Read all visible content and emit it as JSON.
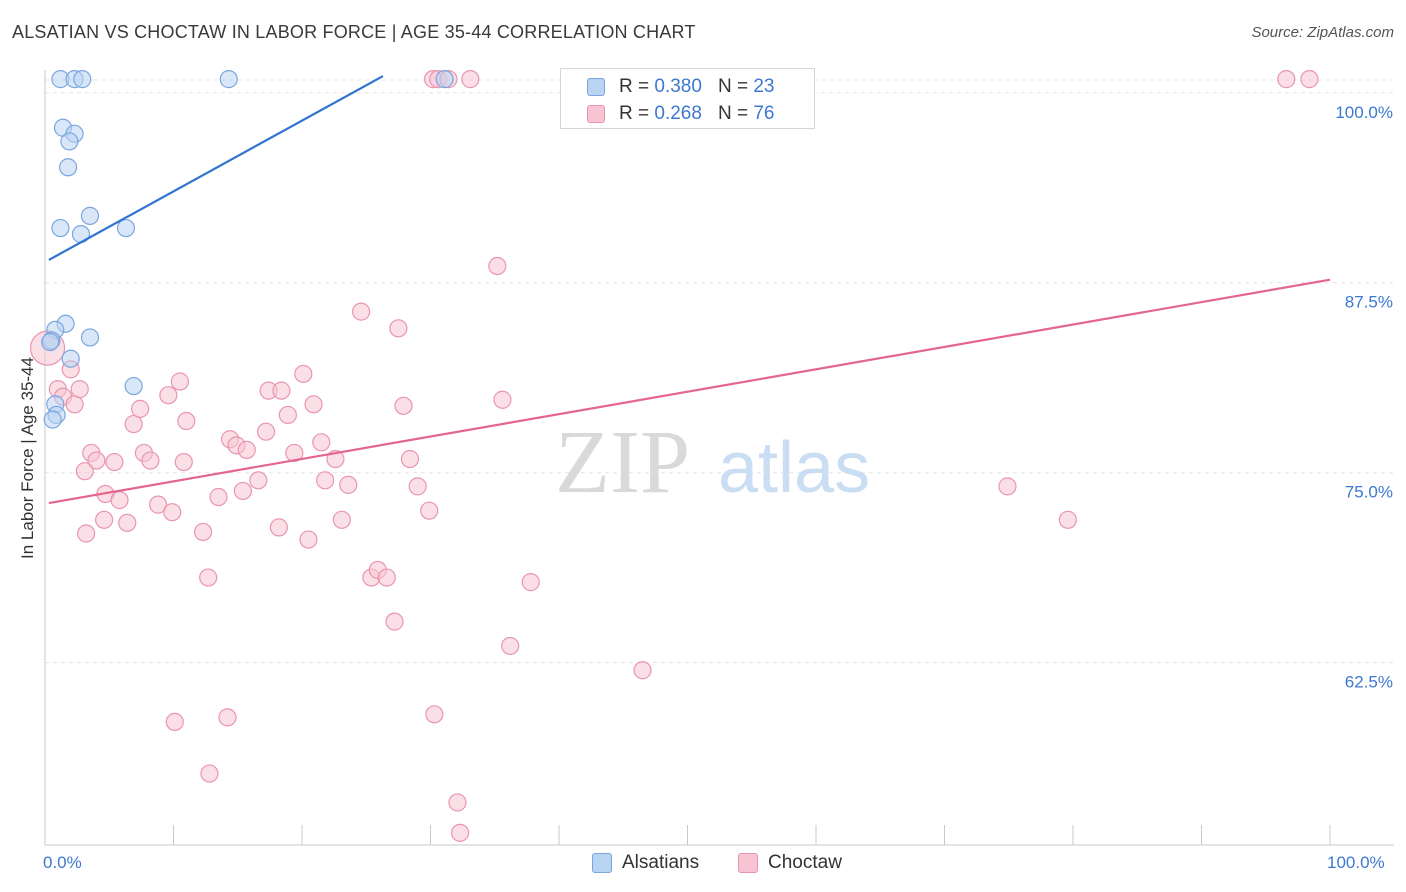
{
  "header": {
    "title": "ALSATIAN VS CHOCTAW IN LABOR FORCE | AGE 35-44 CORRELATION CHART",
    "source": "Source: ZipAtlas.com"
  },
  "watermark": {
    "zip": "ZIP",
    "atlas": "atlas"
  },
  "legend": {
    "rows": [
      {
        "r_label": "R =",
        "r_value": "0.380",
        "n_label": "N =",
        "n_value": "23"
      },
      {
        "r_label": "R =",
        "r_value": "0.268",
        "n_label": "N =",
        "n_value": "76"
      }
    ]
  },
  "bottom_legend": {
    "series1": "Alsatians",
    "series2": "Choctaw"
  },
  "chart_data": {
    "type": "scatter",
    "title": "ALSATIAN VS CHOCTAW IN LABOR FORCE | AGE 35-44 CORRELATION CHART",
    "xlabel": "",
    "ylabel": "In Labor Force | Age 35-44",
    "xlim": [
      0,
      100
    ],
    "ylim": [
      50.5,
      101.5
    ],
    "x_tick_labels": [
      "0.0%",
      "100.0%"
    ],
    "y_ticks": [
      {
        "value": 62.5,
        "label": "62.5%"
      },
      {
        "value": 75.0,
        "label": "75.0%"
      },
      {
        "value": 87.5,
        "label": "87.5%"
      },
      {
        "value": 100.0,
        "label": "100.0%"
      }
    ],
    "grid": true,
    "colors": {
      "alsatians_fill": "#b9d3f3",
      "alsatians_stroke": "#7aa6e0",
      "alsatians_line": "#2f74d0",
      "choctaw_fill": "#f7c4d3",
      "choctaw_stroke": "#e995b0",
      "choctaw_line": "#e4668f",
      "axis_text": "#3d78d0"
    },
    "series": [
      {
        "name": "Alsatians",
        "trend": {
          "x": [
            0.3,
            26.3
          ],
          "y": [
            89.0,
            101.1
          ]
        },
        "points": [
          [
            1.2,
            100.9
          ],
          [
            2.3,
            100.9
          ],
          [
            2.9,
            100.9
          ],
          [
            14.3,
            100.9
          ],
          [
            31.1,
            100.9
          ],
          [
            1.4,
            97.7
          ],
          [
            2.3,
            97.3
          ],
          [
            1.9,
            96.8
          ],
          [
            1.8,
            95.1
          ],
          [
            1.2,
            91.1
          ],
          [
            3.5,
            91.9
          ],
          [
            2.8,
            90.7
          ],
          [
            6.3,
            91.1
          ],
          [
            1.6,
            84.8
          ],
          [
            0.8,
            84.4
          ],
          [
            3.5,
            83.9
          ],
          [
            0.5,
            83.7
          ],
          [
            0.4,
            83.6
          ],
          [
            2.0,
            82.5
          ],
          [
            6.9,
            80.7
          ],
          [
            0.8,
            79.5
          ],
          [
            0.9,
            78.8
          ],
          [
            0.6,
            78.5
          ]
        ]
      },
      {
        "name": "Choctaw",
        "trend": {
          "x": [
            0.3,
            100.0
          ],
          "y": [
            73.0,
            87.7
          ]
        },
        "points": [
          [
            0.2,
            83.2
          ],
          [
            1.0,
            80.5
          ],
          [
            1.4,
            80.0
          ],
          [
            2.3,
            79.5
          ],
          [
            2.7,
            80.5
          ],
          [
            2.0,
            81.8
          ],
          [
            3.6,
            76.3
          ],
          [
            4.0,
            75.8
          ],
          [
            5.4,
            75.7
          ],
          [
            4.7,
            73.6
          ],
          [
            3.2,
            71.0
          ],
          [
            4.6,
            71.9
          ],
          [
            6.4,
            71.7
          ],
          [
            6.9,
            78.2
          ],
          [
            7.4,
            79.2
          ],
          [
            7.7,
            76.3
          ],
          [
            8.2,
            75.8
          ],
          [
            8.8,
            72.9
          ],
          [
            9.6,
            80.1
          ],
          [
            10.5,
            81.0
          ],
          [
            11.0,
            78.4
          ],
          [
            10.8,
            75.7
          ],
          [
            9.9,
            72.4
          ],
          [
            12.3,
            71.1
          ],
          [
            12.7,
            68.1
          ],
          [
            13.5,
            73.4
          ],
          [
            14.4,
            77.2
          ],
          [
            14.9,
            76.8
          ],
          [
            15.4,
            73.8
          ],
          [
            15.7,
            76.5
          ],
          [
            16.6,
            74.5
          ],
          [
            17.2,
            77.7
          ],
          [
            17.4,
            80.4
          ],
          [
            18.4,
            80.4
          ],
          [
            18.9,
            78.8
          ],
          [
            19.4,
            76.3
          ],
          [
            20.1,
            81.5
          ],
          [
            20.9,
            79.5
          ],
          [
            21.5,
            77.0
          ],
          [
            21.8,
            74.5
          ],
          [
            22.6,
            75.9
          ],
          [
            23.1,
            71.9
          ],
          [
            23.6,
            74.2
          ],
          [
            24.6,
            85.6
          ],
          [
            25.4,
            68.1
          ],
          [
            25.9,
            68.6
          ],
          [
            26.6,
            68.1
          ],
          [
            27.2,
            65.2
          ],
          [
            27.5,
            84.5
          ],
          [
            27.9,
            79.4
          ],
          [
            28.4,
            75.9
          ],
          [
            29.0,
            74.1
          ],
          [
            29.9,
            72.5
          ],
          [
            30.2,
            100.9
          ],
          [
            30.6,
            100.9
          ],
          [
            31.4,
            100.9
          ],
          [
            33.1,
            100.9
          ],
          [
            35.2,
            88.6
          ],
          [
            35.6,
            79.8
          ],
          [
            36.2,
            63.6
          ],
          [
            37.8,
            67.8
          ],
          [
            46.5,
            62.0
          ],
          [
            10.1,
            58.6
          ],
          [
            14.2,
            58.9
          ],
          [
            12.8,
            55.2
          ],
          [
            30.3,
            59.1
          ],
          [
            32.1,
            53.3
          ],
          [
            32.3,
            51.3
          ],
          [
            18.2,
            71.4
          ],
          [
            20.5,
            70.6
          ],
          [
            74.9,
            74.1
          ],
          [
            79.6,
            71.9
          ],
          [
            96.6,
            100.9
          ],
          [
            98.4,
            100.9
          ],
          [
            3.1,
            75.1
          ],
          [
            5.8,
            73.2
          ]
        ]
      }
    ]
  }
}
